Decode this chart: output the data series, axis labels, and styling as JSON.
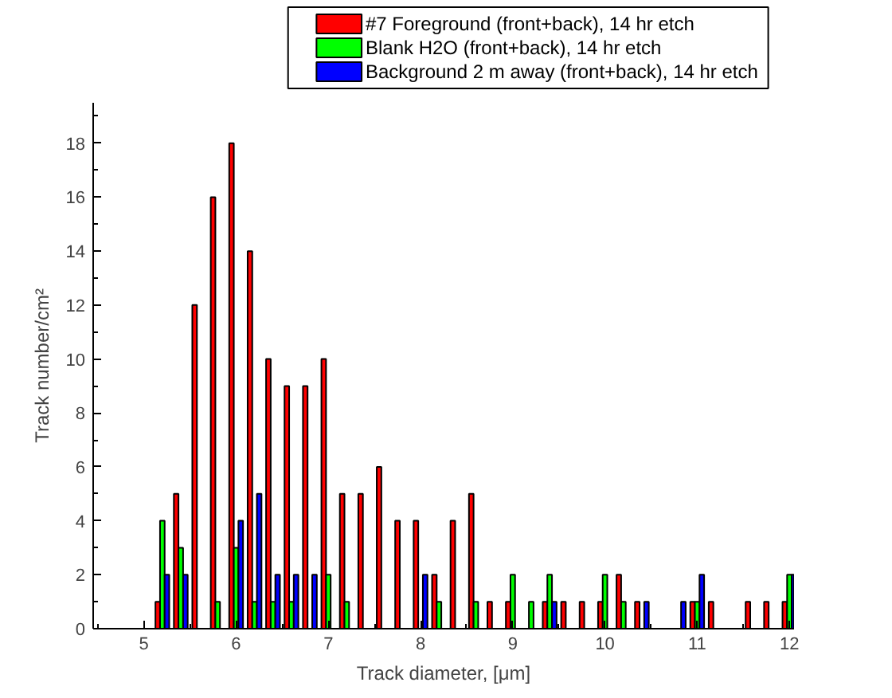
{
  "chart_data": {
    "type": "bar",
    "xlabel": "Track diameter, [μm]",
    "ylabel": "Track number/cm²",
    "xlim": [
      4.45,
      12.05
    ],
    "xticks": [
      5,
      6,
      7,
      8,
      9,
      10,
      11,
      12
    ],
    "ylim": [
      0,
      19.5
    ],
    "yticks": [
      0,
      2,
      4,
      6,
      8,
      10,
      12,
      14,
      16,
      18
    ],
    "grid": false,
    "legend": "top right",
    "series": [
      {
        "name": "#7 Foreground (front+back), 14 hr etch",
        "color": "#ff0000",
        "x": [
          5.2,
          5.4,
          5.6,
          5.8,
          6.0,
          6.2,
          6.4,
          6.6,
          6.8,
          7.0,
          7.2,
          7.4,
          7.6,
          7.8,
          8.0,
          8.2,
          8.4,
          8.6,
          8.8,
          9.0,
          9.4,
          9.6,
          9.8,
          10.0,
          10.2,
          10.4,
          11.0,
          11.2,
          11.6,
          11.8,
          12.0
        ],
        "values": [
          1,
          5,
          12,
          16,
          18,
          14,
          10,
          9,
          9,
          10,
          5,
          5,
          6,
          4,
          4,
          2,
          4,
          5,
          1,
          1,
          1,
          1,
          1,
          1,
          2,
          1,
          1,
          1,
          1,
          1,
          1
        ]
      },
      {
        "name": " Blank H2O (front+back), 14 hr etch",
        "color": "#00ff00",
        "x": [
          5.2,
          5.4,
          5.8,
          6.0,
          6.2,
          6.4,
          6.6,
          7.0,
          7.2,
          8.2,
          8.6,
          9.0,
          9.2,
          9.4,
          10.0,
          10.2,
          11.0,
          12.0
        ],
        "values": [
          4,
          3,
          1,
          3,
          1,
          1,
          1,
          2,
          1,
          1,
          1,
          2,
          1,
          2,
          2,
          1,
          1,
          2
        ]
      },
      {
        "name": "Background 2 m away (front+back), 14 hr etch",
        "color": "#0000ff",
        "x": [
          5.2,
          5.4,
          6.0,
          6.2,
          6.4,
          6.6,
          6.8,
          8.0,
          9.4,
          10.4,
          10.8,
          11.0,
          12.0
        ],
        "values": [
          2,
          2,
          4,
          5,
          2,
          2,
          2,
          2,
          1,
          1,
          1,
          2,
          2
        ]
      }
    ]
  }
}
